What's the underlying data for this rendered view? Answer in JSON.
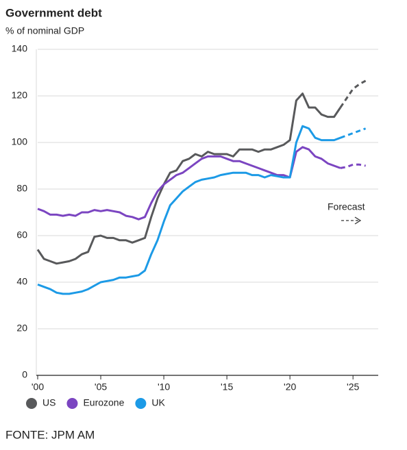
{
  "chart_data": {
    "type": "line",
    "title": "Government debt",
    "subtitle": "% of nominal GDP",
    "source": "FONTE: JPM AM",
    "annotation": "Forecast",
    "forecast_from": 2024,
    "x": [
      2000,
      2000.5,
      2001,
      2001.5,
      2002,
      2002.5,
      2003,
      2003.5,
      2004,
      2004.5,
      2005,
      2005.5,
      2006,
      2006.5,
      2007,
      2007.5,
      2008,
      2008.5,
      2009,
      2009.5,
      2010,
      2010.5,
      2011,
      2011.5,
      2012,
      2012.5,
      2013,
      2013.5,
      2014,
      2014.5,
      2015,
      2015.5,
      2016,
      2016.5,
      2017,
      2017.5,
      2018,
      2018.5,
      2019,
      2019.5,
      2020,
      2020.5,
      2021,
      2021.5,
      2022,
      2022.5,
      2023,
      2023.5,
      2024,
      2024.5,
      2025,
      2025.5,
      2026
    ],
    "series": [
      {
        "name": "US",
        "color": "#58595b",
        "values": [
          54,
          50,
          49,
          48,
          48.5,
          49,
          50,
          52,
          53,
          59.5,
          60,
          59,
          59,
          58,
          58,
          57,
          58,
          59,
          68,
          76,
          82,
          87,
          88,
          92,
          93,
          95,
          94,
          96,
          95,
          95,
          95,
          94,
          97,
          97,
          97,
          96,
          97,
          97,
          98,
          99,
          101,
          118,
          121,
          115,
          115,
          112,
          111,
          111,
          115,
          119,
          123,
          125,
          126.5
        ]
      },
      {
        "name": "Eurozone",
        "color": "#7b45c1",
        "values": [
          71.5,
          70.5,
          69,
          69,
          68.5,
          69,
          68.5,
          70,
          70,
          71,
          70.5,
          71,
          70.5,
          70,
          68.5,
          68,
          67,
          68,
          74,
          79,
          82,
          84,
          86,
          87,
          89,
          91,
          93,
          94,
          94,
          94,
          93,
          92,
          92,
          91,
          90,
          89,
          88,
          87,
          86,
          86,
          85,
          96,
          98,
          97,
          94,
          93,
          91,
          90,
          89,
          89.5,
          90.5,
          90.5,
          90
        ]
      },
      {
        "name": "UK",
        "color": "#1c9ae6",
        "values": [
          39,
          38,
          37,
          35.5,
          35,
          35,
          35.5,
          36,
          37,
          38.5,
          40,
          40.5,
          41,
          42,
          42,
          42.5,
          43,
          45,
          52,
          58,
          66,
          73,
          76,
          79,
          81,
          83,
          84,
          84.5,
          85,
          86,
          86.5,
          87,
          87,
          87,
          86,
          86,
          85,
          86,
          85.5,
          85,
          85,
          100,
          107,
          106,
          102,
          101,
          101,
          101,
          102,
          103,
          104,
          105,
          106
        ]
      }
    ],
    "xlim": [
      2000,
      2027
    ],
    "xticks": [
      {
        "value": 2000,
        "label": "'00"
      },
      {
        "value": 2005,
        "label": "'05"
      },
      {
        "value": 2010,
        "label": "'10"
      },
      {
        "value": 2015,
        "label": "'15"
      },
      {
        "value": 2020,
        "label": "'20"
      },
      {
        "value": 2025,
        "label": "'25"
      }
    ],
    "ylim": [
      0,
      140
    ],
    "yticks": [
      0,
      20,
      40,
      60,
      80,
      100,
      120,
      140
    ],
    "grid": true
  }
}
